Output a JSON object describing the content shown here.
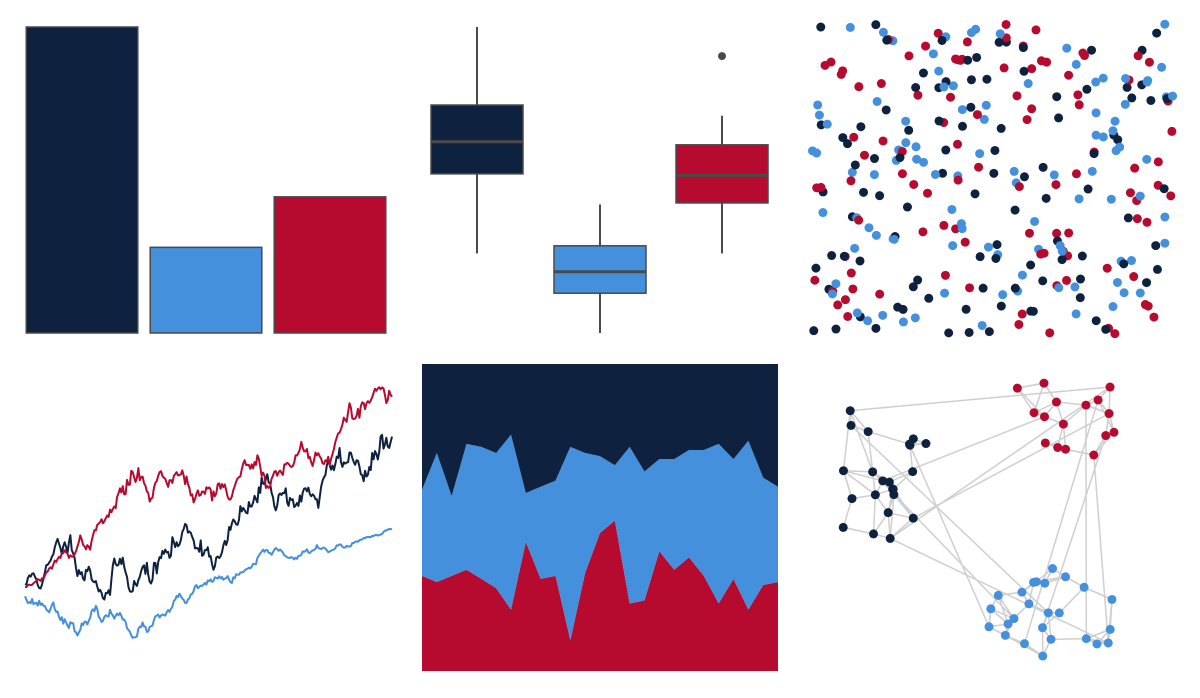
{
  "palette": {
    "navy": "#0e2240",
    "blue": "#4490dd",
    "red": "#b70a2f",
    "edge": "#4a4a4a",
    "network_edge": "#cfcfcf"
  },
  "chart_data": [
    {
      "type": "bar",
      "panel": "top-left",
      "categories": [
        "a",
        "b",
        "c"
      ],
      "values": [
        1.0,
        0.28,
        0.445
      ],
      "ylim": [
        0,
        1
      ],
      "colors": [
        "navy",
        "blue",
        "red"
      ],
      "axes": false,
      "grid": false
    },
    {
      "type": "box",
      "panel": "top-center",
      "ylim": [
        0,
        1
      ],
      "boxes": [
        {
          "color": "navy",
          "whisker_low": 0.26,
          "q1": 0.52,
          "median": 0.625,
          "q3": 0.745,
          "whisker_high": 1.0,
          "outliers": []
        },
        {
          "color": "blue",
          "whisker_low": 0.0,
          "q1": 0.13,
          "median": 0.2,
          "q3": 0.285,
          "whisker_high": 0.42,
          "outliers": []
        },
        {
          "color": "red",
          "whisker_low": 0.26,
          "q1": 0.425,
          "median": 0.515,
          "q3": 0.615,
          "whisker_high": 0.71,
          "outliers": [
            0.905
          ]
        }
      ],
      "axes": false,
      "grid": false
    },
    {
      "type": "scatter",
      "panel": "top-right",
      "xlim": [
        0,
        1
      ],
      "ylim": [
        0,
        1
      ],
      "points_per_color": 100,
      "colors": [
        "navy",
        "blue",
        "red"
      ],
      "distribution": "uniform",
      "axes": false
    },
    {
      "type": "line",
      "panel": "bottom-left",
      "series_count": 3,
      "length": 260,
      "colors": [
        "navy",
        "blue",
        "red"
      ],
      "description_kind": "random-walk",
      "ylim": [
        0,
        1
      ],
      "series": [
        {
          "color": "navy",
          "start": 0.28,
          "end": 0.76,
          "min": 0.17,
          "max": 0.92
        },
        {
          "color": "blue",
          "start": 0.24,
          "end": 0.46,
          "min": 0.0,
          "max": 0.49
        },
        {
          "color": "red",
          "start": 0.27,
          "end": 0.89,
          "min": 0.27,
          "max": 1.0
        }
      ],
      "axes": false
    },
    {
      "type": "area",
      "panel": "bottom-center",
      "stacked": true,
      "normalized": true,
      "x": [
        0,
        1,
        2,
        3,
        4,
        5,
        6,
        7,
        8,
        9,
        10,
        11,
        12,
        13,
        14,
        15,
        16,
        17,
        18,
        19,
        20,
        21,
        22,
        23,
        24
      ],
      "series": [
        {
          "color": "red",
          "values": [
            0.31,
            0.29,
            0.31,
            0.33,
            0.3,
            0.27,
            0.2,
            0.42,
            0.3,
            0.31,
            0.1,
            0.32,
            0.45,
            0.49,
            0.22,
            0.23,
            0.39,
            0.33,
            0.37,
            0.31,
            0.22,
            0.3,
            0.2,
            0.28,
            0.29
          ]
        },
        {
          "color": "blue",
          "values": [
            0.28,
            0.42,
            0.26,
            0.41,
            0.43,
            0.44,
            0.57,
            0.16,
            0.3,
            0.31,
            0.63,
            0.39,
            0.25,
            0.18,
            0.51,
            0.42,
            0.3,
            0.36,
            0.35,
            0.41,
            0.52,
            0.39,
            0.55,
            0.35,
            0.31
          ]
        },
        {
          "color": "navy",
          "values": [
            0.41,
            0.29,
            0.43,
            0.26,
            0.27,
            0.29,
            0.23,
            0.42,
            0.4,
            0.38,
            0.27,
            0.29,
            0.3,
            0.33,
            0.27,
            0.35,
            0.31,
            0.31,
            0.28,
            0.28,
            0.26,
            0.31,
            0.25,
            0.37,
            0.4
          ]
        }
      ],
      "axes": false
    },
    {
      "type": "network",
      "panel": "bottom-right",
      "communities": [
        {
          "color": "red",
          "count": 16
        },
        {
          "color": "navy",
          "count": 22
        },
        {
          "color": "blue",
          "count": 25
        }
      ],
      "axes": false
    }
  ]
}
